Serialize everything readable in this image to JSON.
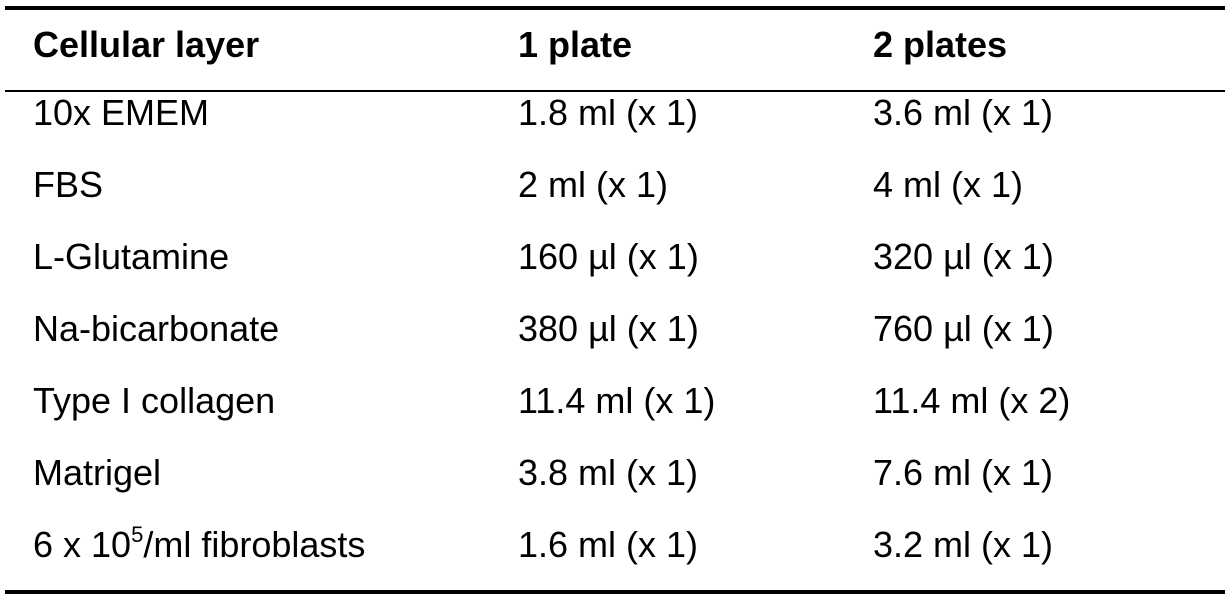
{
  "table": {
    "headers": [
      "Cellular layer",
      "1 plate",
      "2 plates"
    ],
    "rows": [
      [
        "10x EMEM",
        "1.8 ml (x 1)",
        "3.6 ml (x 1)"
      ],
      [
        "FBS",
        "2 ml (x 1)",
        "4 ml (x 1)"
      ],
      [
        "L-Glutamine",
        "160 µl (x 1)",
        "320 µl (x 1)"
      ],
      [
        "Na-bicarbonate",
        "380 µl (x 1)",
        "760 µl (x 1)"
      ],
      [
        "Type I collagen",
        "11.4 ml (x 1)",
        "11.4 ml (x 2)"
      ],
      [
        "Matrigel",
        "3.8 ml (x 1)",
        "7.6 ml (x 1)"
      ]
    ],
    "last_row": {
      "label_prefix": "6 x 10",
      "label_exponent": "5",
      "label_suffix": "/ml fibroblasts",
      "plate1": "1.6 ml (x 1)",
      "plate2": "3.2 ml (x 1)"
    }
  }
}
